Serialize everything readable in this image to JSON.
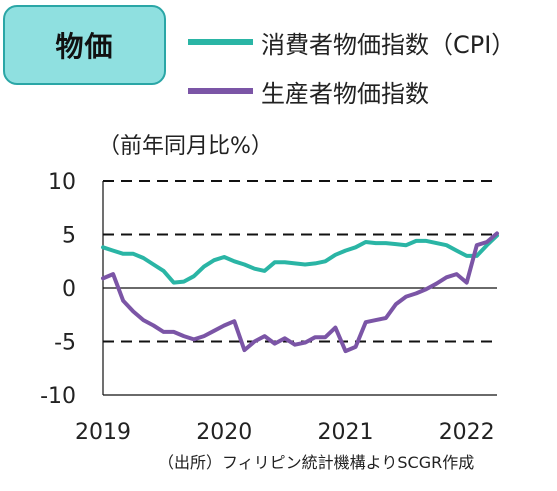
{
  "title": "物価",
  "legend": {
    "cpi_label": "消費者物価指数（CPI）",
    "ppi_label": "生産者物価指数"
  },
  "unit_label": "（前年同月比%）",
  "source_note": "（出所）フィリピン統計機構よりSCGR作成",
  "colors": {
    "cpi": "#2ab5a5",
    "ppi": "#7b55a6",
    "title_bg": "#8fe0e0",
    "title_border": "#2aa6a6"
  },
  "chart_data": {
    "type": "line",
    "ylim": [
      -10,
      10
    ],
    "y_ticks": [
      10,
      5,
      0,
      -5,
      -10
    ],
    "y_tick_labels": [
      "10",
      "5",
      "0",
      "-5",
      "-10"
    ],
    "x_tick_labels": [
      "2019",
      "2020",
      "2021",
      "2022"
    ],
    "grid": "dashed horizontal at 10, 5, -5",
    "legend_position": "top-right",
    "x": [
      "2019-01",
      "2019-02",
      "2019-03",
      "2019-04",
      "2019-05",
      "2019-06",
      "2019-07",
      "2019-08",
      "2019-09",
      "2019-10",
      "2019-11",
      "2019-12",
      "2020-01",
      "2020-02",
      "2020-03",
      "2020-04",
      "2020-05",
      "2020-06",
      "2020-07",
      "2020-08",
      "2020-09",
      "2020-10",
      "2020-11",
      "2020-12",
      "2021-01",
      "2021-02",
      "2021-03",
      "2021-04",
      "2021-05",
      "2021-06",
      "2021-07",
      "2021-08",
      "2021-09",
      "2021-10",
      "2021-11",
      "2021-12",
      "2022-01",
      "2022-02",
      "2022-03",
      "2022-04"
    ],
    "series": [
      {
        "name": "消費者物価指数（CPI）",
        "values": [
          3.8,
          3.5,
          3.2,
          3.2,
          2.8,
          2.2,
          1.6,
          0.5,
          0.6,
          1.1,
          2.0,
          2.6,
          2.9,
          2.5,
          2.2,
          1.8,
          1.6,
          2.4,
          2.4,
          2.3,
          2.2,
          2.3,
          2.5,
          3.1,
          3.5,
          3.8,
          4.3,
          4.2,
          4.2,
          4.1,
          4.0,
          4.4,
          4.4,
          4.2,
          4.0,
          3.5,
          3.0,
          3.0,
          4.0,
          4.9
        ]
      },
      {
        "name": "生産者物価指数",
        "values": [
          0.9,
          1.3,
          -1.2,
          -2.2,
          -3.0,
          -3.5,
          -4.1,
          -4.1,
          -4.5,
          -4.8,
          -4.5,
          -4.0,
          -3.5,
          -3.1,
          -5.8,
          -5.0,
          -4.5,
          -5.2,
          -4.7,
          -5.3,
          -5.1,
          -4.6,
          -4.6,
          -3.7,
          -5.9,
          -5.5,
          -3.2,
          -3.0,
          -2.8,
          -1.5,
          -0.8,
          -0.5,
          -0.1,
          0.4,
          1.0,
          1.3,
          0.5,
          4.0,
          4.3,
          5.1
        ]
      }
    ]
  }
}
